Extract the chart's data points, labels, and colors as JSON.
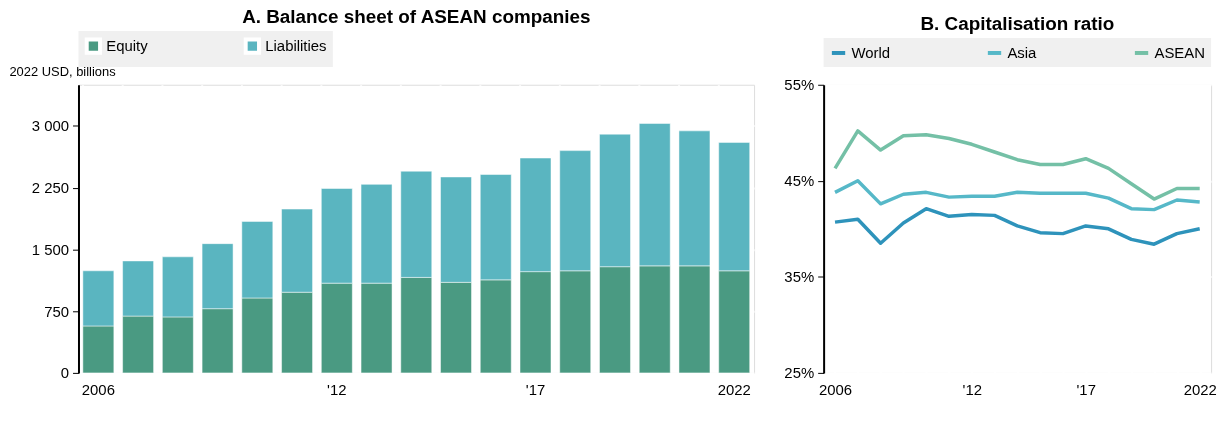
{
  "chart_data": [
    {
      "type": "bar",
      "title": "A. Balance sheet of ASEAN companies",
      "ylabel": "2022 USD, billions",
      "stacked": true,
      "categories": [
        "2006",
        null,
        null,
        null,
        null,
        null,
        "'12",
        null,
        null,
        null,
        null,
        "'17",
        null,
        null,
        null,
        null,
        "2022"
      ],
      "series": [
        {
          "name": "Equity",
          "color": "#4a9a82",
          "values": [
            570,
            690,
            680,
            780,
            910,
            980,
            1090,
            1090,
            1160,
            1100,
            1130,
            1230,
            1240,
            1290,
            1300,
            1300,
            1240
          ]
        },
        {
          "name": "Liabilities",
          "color": "#5ab5c0",
          "values": [
            670,
            670,
            730,
            790,
            930,
            1010,
            1150,
            1200,
            1290,
            1280,
            1280,
            1380,
            1460,
            1610,
            1730,
            1640,
            1560
          ]
        }
      ],
      "ylim": [
        0,
        3500
      ],
      "yticks": [
        0,
        750,
        {
          "value": 1500,
          "label": "1 500"
        },
        {
          "value": 2250,
          "label": "2 250"
        },
        {
          "value": 3000,
          "label": "3 000"
        }
      ],
      "grid": true,
      "legend": "top"
    },
    {
      "type": "line",
      "title": "B. Capitalisation ratio",
      "categories": [
        "2006",
        null,
        null,
        null,
        null,
        null,
        "'12",
        null,
        null,
        null,
        null,
        "'17",
        null,
        null,
        null,
        null,
        "2022"
      ],
      "series": [
        {
          "name": "World",
          "color": "#2e93bb",
          "values": [
            40.7,
            41.0,
            38.5,
            40.6,
            42.1,
            41.3,
            41.5,
            41.4,
            40.3,
            39.6,
            39.5,
            40.3,
            40.0,
            38.9,
            38.4,
            39.5,
            40.0
          ]
        },
        {
          "name": "Asia",
          "color": "#56b8c8",
          "values": [
            43.8,
            45.0,
            42.6,
            43.6,
            43.8,
            43.3,
            43.4,
            43.4,
            43.8,
            43.7,
            43.7,
            43.7,
            43.2,
            42.1,
            42.0,
            43.0,
            42.8
          ]
        },
        {
          "name": "ASEAN",
          "color": "#74c0a6",
          "values": [
            46.3,
            50.2,
            48.2,
            49.7,
            49.8,
            49.4,
            48.8,
            48.0,
            47.2,
            46.7,
            46.7,
            47.3,
            46.3,
            44.7,
            43.1,
            44.2,
            44.2
          ]
        }
      ],
      "ylim": [
        25,
        55
      ],
      "yticks": [
        {
          "value": 25,
          "label": "25%"
        },
        {
          "value": 35,
          "label": "35%"
        },
        {
          "value": 45,
          "label": "45%"
        },
        {
          "value": 55,
          "label": "55%"
        }
      ],
      "grid": true,
      "legend": "top",
      "line_style": "solid",
      "marker": "none"
    }
  ]
}
